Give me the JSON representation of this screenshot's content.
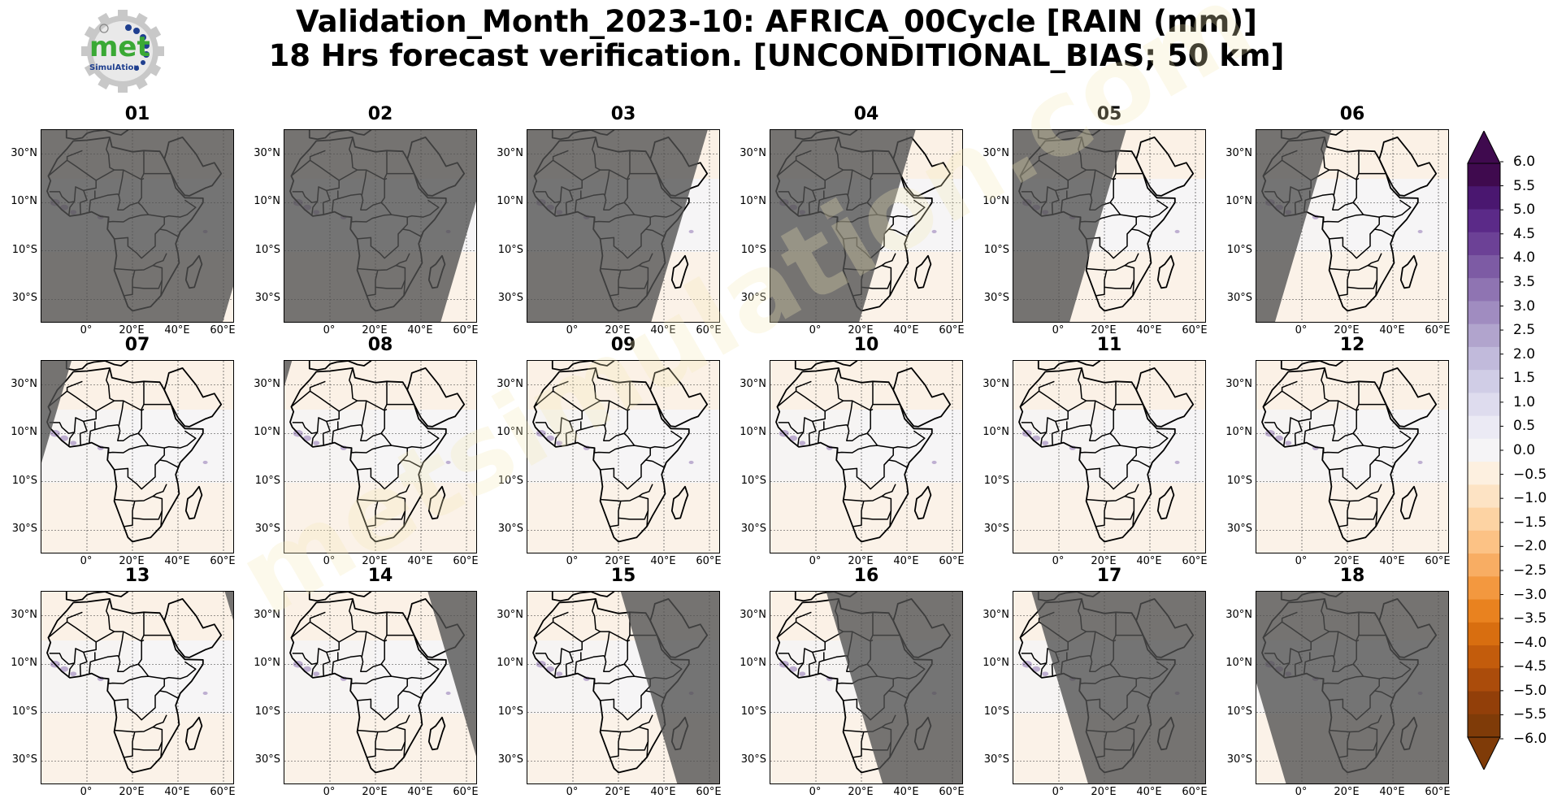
{
  "figure": {
    "title_line1": "Validation_Month_2023-10: AFRICA_00Cycle [RAIN (mm)]",
    "title_line2": "18 Hrs forecast verification. [UNCONDITIONAL_BIAS; 50 km]"
  },
  "logo": {
    "text_main": "met",
    "text_sub": "SimulAtion",
    "icon": "gear-logo-icon",
    "colors": {
      "gear": "#c8c8c8",
      "met": "#3aa935",
      "sub": "#1f3f8f",
      "dots": "#1f3f8f"
    }
  },
  "panels": [
    {
      "label": "01",
      "shade": "left",
      "shade_frac": 0.95
    },
    {
      "label": "02",
      "shade": "left",
      "shade_frac": 0.85
    },
    {
      "label": "03",
      "shade": "left",
      "shade_frac": 0.72
    },
    {
      "label": "04",
      "shade": "left",
      "shade_frac": 0.58
    },
    {
      "label": "05",
      "shade": "left",
      "shade_frac": 0.45
    },
    {
      "label": "06",
      "shade": "left",
      "shade_frac": 0.3
    },
    {
      "label": "07",
      "shade": "left",
      "shade_frac": 0.12
    },
    {
      "label": "08",
      "shade": "left",
      "shade_frac": 0.03
    },
    {
      "label": "09",
      "shade": "none",
      "shade_frac": 0.0
    },
    {
      "label": "10",
      "shade": "none",
      "shade_frac": 0.0
    },
    {
      "label": "11",
      "shade": "none",
      "shade_frac": 0.0
    },
    {
      "label": "12",
      "shade": "none",
      "shade_frac": 0.0
    },
    {
      "label": "13",
      "shade": "right",
      "shade_frac": 0.04
    },
    {
      "label": "14",
      "shade": "right",
      "shade_frac": 0.2
    },
    {
      "label": "15",
      "shade": "right",
      "shade_frac": 0.4
    },
    {
      "label": "16",
      "shade": "right",
      "shade_frac": 0.55
    },
    {
      "label": "17",
      "shade": "right",
      "shade_frac": 0.7
    },
    {
      "label": "18",
      "shade": "right",
      "shade_frac": 0.88
    }
  ],
  "axes": {
    "y_ticks": [
      "30°N",
      "10°N",
      "10°S",
      "30°S"
    ],
    "x_ticks": [
      "0°",
      "20°E",
      "40°E",
      "60°E"
    ]
  },
  "colorbar": {
    "labels": [
      "6.0",
      "5.5",
      "5.0",
      "4.5",
      "4.0",
      "3.5",
      "3.0",
      "2.5",
      "2.0",
      "1.5",
      "1.0",
      "0.5",
      "0.0",
      "−0.5",
      "−1.0",
      "−1.5",
      "−2.0",
      "−2.5",
      "−3.0",
      "−3.5",
      "−4.0",
      "−4.5",
      "−5.0",
      "−5.5",
      "−6.0"
    ],
    "colors_top_to_bottom": [
      "#3f0a4e",
      "#4a1770",
      "#5b2a88",
      "#6c4196",
      "#7d5ba4",
      "#8f74b2",
      "#a08cc0",
      "#b1a4cd",
      "#c1badb",
      "#d0cde6",
      "#dedcee",
      "#ebeaf4",
      "#f5f4f6",
      "#fdf0e0",
      "#fde3c4",
      "#fdd3a3",
      "#fcc285",
      "#f8ad63",
      "#f3983f",
      "#e9821f",
      "#d86e10",
      "#c35c0c",
      "#ab4c0b",
      "#923f09",
      "#7f3b08"
    ],
    "extend": "both"
  },
  "watermark": {
    "text": "metsimulation.com"
  }
}
